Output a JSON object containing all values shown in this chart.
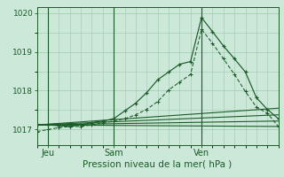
{
  "title": "Pression niveau de la mer( hPa )",
  "bg_color": "#cce8d8",
  "grid_color": "#a0c8b0",
  "line_color": "#1a5c28",
  "line_color2": "#2a7a3a",
  "ylim": [
    1016.6,
    1020.15
  ],
  "yticks": [
    1017,
    1018,
    1019,
    1020
  ],
  "xlim": [
    0,
    22
  ],
  "xtick_positions": [
    1,
    7,
    15
  ],
  "xtick_labels": [
    "Jeu",
    "Sam",
    "Ven"
  ],
  "vlines": [
    1,
    7,
    15
  ],
  "trend_lines": [
    {
      "x": [
        0,
        22
      ],
      "y": [
        1017.12,
        1017.55
      ]
    },
    {
      "x": [
        0,
        22
      ],
      "y": [
        1017.12,
        1017.38
      ]
    },
    {
      "x": [
        0,
        22
      ],
      "y": [
        1017.12,
        1017.22
      ]
    },
    {
      "x": [
        0,
        22
      ],
      "y": [
        1017.12,
        1017.08
      ]
    }
  ],
  "main_series_x": [
    0,
    1,
    2,
    3,
    4,
    5,
    6,
    7,
    8,
    9,
    10,
    11,
    12,
    13,
    14,
    15,
    16,
    17,
    18,
    19,
    20,
    21,
    22
  ],
  "main_series_y": [
    1017.12,
    1017.12,
    1017.1,
    1017.08,
    1017.12,
    1017.18,
    1017.22,
    1017.28,
    1017.48,
    1017.68,
    1017.95,
    1018.28,
    1018.48,
    1018.68,
    1018.75,
    1019.88,
    1019.52,
    1019.15,
    1018.82,
    1018.48,
    1017.82,
    1017.52,
    1017.28
  ],
  "second_series_x": [
    0,
    1,
    2,
    3,
    4,
    5,
    6,
    7,
    8,
    9,
    10,
    11,
    12,
    13,
    14,
    15,
    16,
    17,
    18,
    19,
    20,
    21,
    22
  ],
  "second_series_y": [
    1016.95,
    1017.0,
    1017.05,
    1017.08,
    1017.08,
    1017.12,
    1017.18,
    1017.22,
    1017.28,
    1017.38,
    1017.52,
    1017.72,
    1018.02,
    1018.22,
    1018.42,
    1019.58,
    1019.22,
    1018.82,
    1018.42,
    1017.98,
    1017.58,
    1017.42,
    1017.08
  ]
}
